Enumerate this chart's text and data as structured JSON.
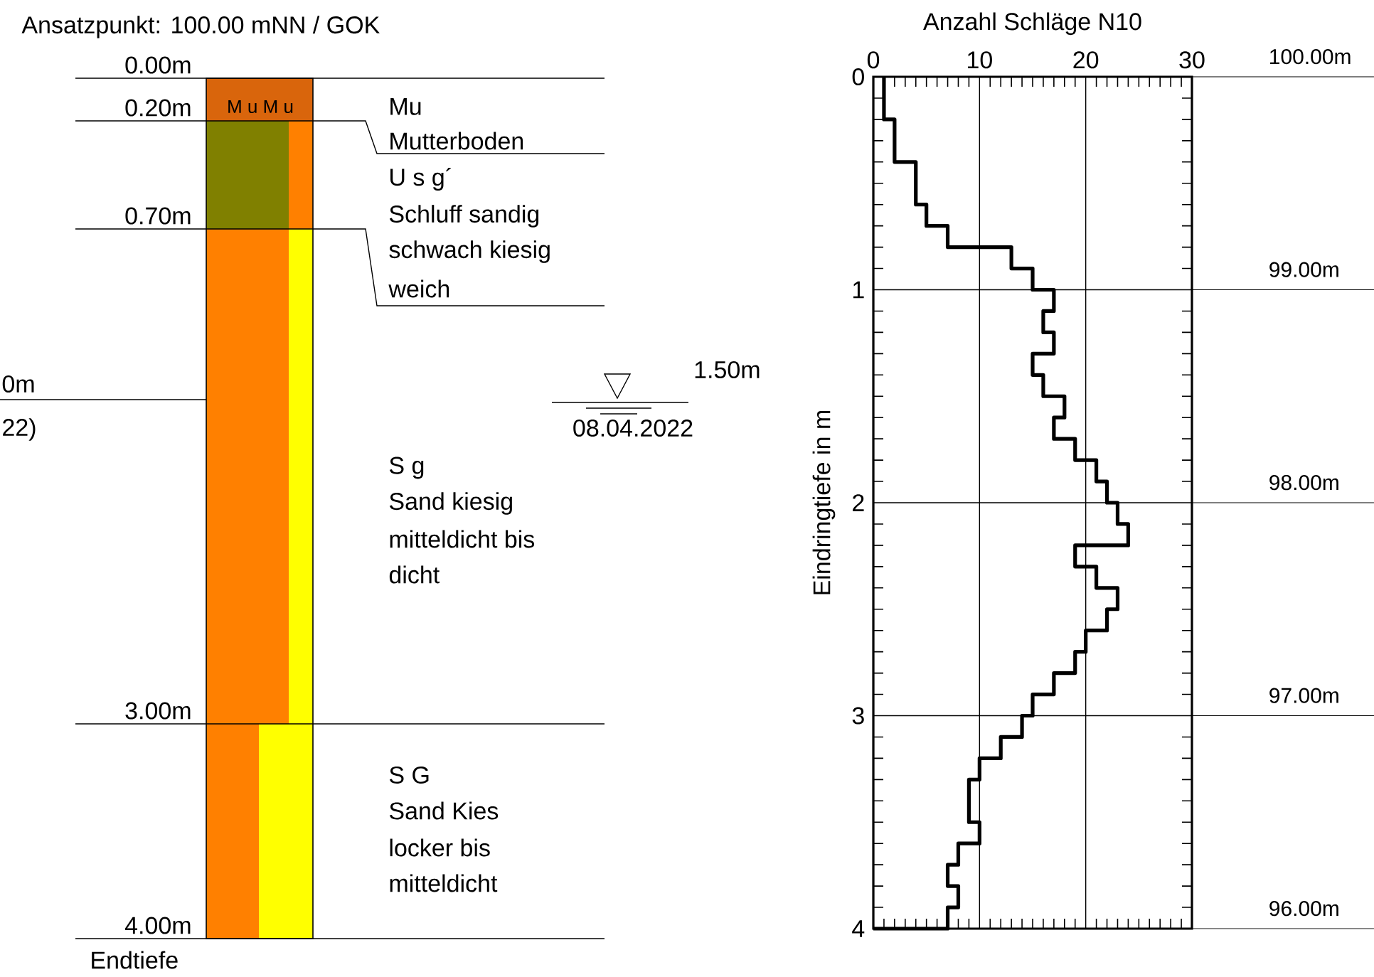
{
  "chart_data": [
    {
      "type": "other",
      "title": "Ansatzpunkt: 100.00 mNN / GOK",
      "colors": [
        "#d9650c",
        "#808000",
        "#ff8000",
        "#ffff00"
      ],
      "annotations": [
        "0.00m",
        "0.20m",
        "0.70m",
        "3.00m",
        "4.00m",
        "Endtiefe",
        "M u M u",
        "Mu",
        "Mutterboden",
        "U s g´",
        "Schluff sandig",
        "schwach kiesig",
        "weich",
        "S g",
        "Sand kiesig",
        "mitteldicht bis",
        "dicht",
        "S G",
        "Sand Kies",
        "locker bis",
        "mitteldicht",
        "1.50m",
        "08.04.2022",
        "0m",
        "22)"
      ]
    },
    {
      "type": "step",
      "orientation": "horizontal",
      "xlabel": "Anzahl Schläge N10",
      "ylabel": "Eindringtiefe in m",
      "color": "#000000",
      "x": [
        0,
        0.2,
        0.4,
        0.6,
        0.7,
        0.8,
        0.9,
        1.0,
        1.1,
        1.2,
        1.3,
        1.4,
        1.5,
        1.6,
        1.7,
        1.8,
        1.9,
        2.0,
        2.1,
        2.2,
        2.3,
        2.4,
        2.5,
        2.6,
        2.7,
        2.8,
        2.9,
        3.0,
        3.1,
        3.2,
        3.3,
        3.4,
        3.5,
        3.6,
        3.7,
        3.8,
        3.9,
        4.0
      ],
      "values": [
        1,
        2,
        4,
        5,
        7,
        13,
        15,
        17,
        16,
        17,
        15,
        16,
        18,
        17,
        19,
        21,
        22,
        23,
        24,
        19,
        21,
        23,
        22,
        20,
        19,
        17,
        15,
        14,
        12,
        10,
        9,
        9,
        10,
        8,
        7,
        8,
        7,
        0
      ],
      "xlim": [
        0,
        30
      ],
      "xticks": [
        0,
        10,
        20,
        30
      ],
      "ylim": [
        4,
        0
      ],
      "yticks": [
        0,
        1,
        2,
        3,
        4
      ],
      "y2lim": [
        96,
        100
      ],
      "y2ticks": [
        {
          "value": 100,
          "label": "100.00m"
        },
        {
          "value": 99,
          "label": "99.00m"
        },
        {
          "value": 98,
          "label": "98.00m"
        },
        {
          "value": 97,
          "label": "97.00m"
        },
        {
          "value": 96,
          "label": "96.00m"
        }
      ],
      "grid": true
    }
  ]
}
